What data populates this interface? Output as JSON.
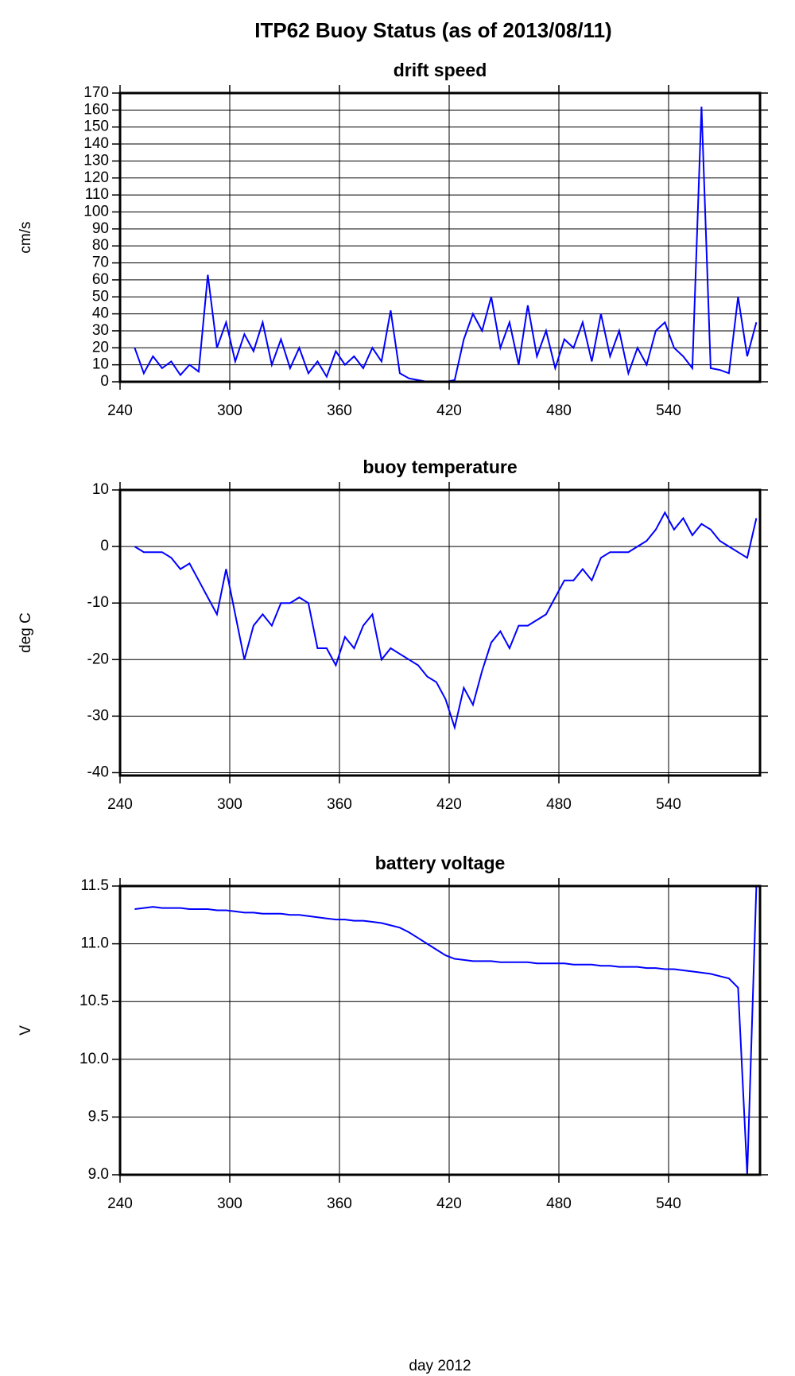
{
  "title": "ITP62 Buoy Status (as of 2013/08/11)",
  "chart_data": [
    {
      "type": "line",
      "title": "drift speed",
      "ylabel": "cm/s",
      "grid": true,
      "xlim": [
        240,
        590
      ],
      "xticks": [
        240,
        300,
        360,
        420,
        480,
        540
      ],
      "ylim": [
        0,
        170
      ],
      "yticks": [
        0,
        10,
        20,
        30,
        40,
        50,
        60,
        70,
        80,
        90,
        100,
        110,
        120,
        130,
        140,
        150,
        160,
        170
      ],
      "x": [
        248,
        253,
        258,
        263,
        268,
        273,
        278,
        283,
        288,
        293,
        298,
        303,
        308,
        313,
        318,
        323,
        328,
        333,
        338,
        343,
        348,
        353,
        358,
        363,
        368,
        373,
        378,
        383,
        388,
        393,
        398,
        403,
        408,
        413,
        418,
        423,
        428,
        433,
        438,
        443,
        448,
        453,
        458,
        463,
        468,
        473,
        478,
        483,
        488,
        493,
        498,
        503,
        508,
        513,
        518,
        523,
        528,
        533,
        538,
        543,
        548,
        553,
        558,
        563,
        568,
        573,
        578,
        583,
        588
      ],
      "series": [
        {
          "color": "#0000ff",
          "values": [
            20,
            5,
            15,
            8,
            12,
            4,
            10,
            6,
            63,
            20,
            35,
            12,
            28,
            18,
            35,
            10,
            25,
            8,
            20,
            5,
            12,
            3,
            18,
            10,
            15,
            8,
            20,
            12,
            42,
            5,
            2,
            1,
            0,
            0,
            0,
            1,
            25,
            40,
            30,
            50,
            20,
            35,
            10,
            45,
            15,
            30,
            8,
            25,
            20,
            35,
            12,
            40,
            15,
            30,
            5,
            20,
            10,
            30,
            35,
            20,
            15,
            8,
            162,
            8,
            7,
            5,
            50,
            15,
            35
          ]
        }
      ]
    },
    {
      "type": "line",
      "title": "buoy temperature",
      "ylabel": "deg C",
      "grid": true,
      "xlim": [
        240,
        590
      ],
      "xticks": [
        240,
        300,
        360,
        420,
        480,
        540
      ],
      "ylim": [
        -40.5,
        10
      ],
      "yticks": [
        -40,
        -30,
        -20,
        -10,
        0,
        10
      ],
      "x": [
        248,
        253,
        258,
        263,
        268,
        273,
        278,
        283,
        288,
        293,
        298,
        303,
        308,
        313,
        318,
        323,
        328,
        333,
        338,
        343,
        348,
        353,
        358,
        363,
        368,
        373,
        378,
        383,
        388,
        393,
        398,
        403,
        408,
        413,
        418,
        423,
        428,
        433,
        438,
        443,
        448,
        453,
        458,
        463,
        468,
        473,
        478,
        483,
        488,
        493,
        498,
        503,
        508,
        513,
        518,
        523,
        528,
        533,
        538,
        543,
        548,
        553,
        558,
        563,
        568,
        573,
        578,
        583,
        588
      ],
      "series": [
        {
          "color": "#0000ff",
          "values": [
            0,
            -1,
            -1,
            -1,
            -2,
            -4,
            -3,
            -6,
            -9,
            -12,
            -4,
            -12,
            -20,
            -14,
            -12,
            -14,
            -10,
            -10,
            -9,
            -10,
            -18,
            -18,
            -21,
            -16,
            -18,
            -14,
            -12,
            -20,
            -18,
            -19,
            -20,
            -21,
            -23,
            -24,
            -27,
            -32,
            -25,
            -28,
            -22,
            -17,
            -15,
            -18,
            -14,
            -14,
            -13,
            -12,
            -9,
            -6,
            -6,
            -4,
            -6,
            -2,
            -1,
            -1,
            -1,
            0,
            1,
            3,
            6,
            3,
            5,
            2,
            4,
            3,
            1,
            0,
            -1,
            -2,
            5
          ]
        }
      ]
    },
    {
      "type": "line",
      "title": "battery voltage",
      "ylabel": "V",
      "xlabel": "day 2012",
      "grid": true,
      "xlim": [
        240,
        590
      ],
      "xticks": [
        240,
        300,
        360,
        420,
        480,
        540
      ],
      "ylim": [
        9,
        11.5
      ],
      "yticks": [
        {
          "value": 9,
          "label": "9.0"
        },
        9.5,
        {
          "value": 10,
          "label": "10.0"
        },
        10.5,
        {
          "value": 11,
          "label": "11.0"
        },
        11.5
      ],
      "x": [
        248,
        253,
        258,
        263,
        268,
        273,
        278,
        283,
        288,
        293,
        298,
        303,
        308,
        313,
        318,
        323,
        328,
        333,
        338,
        343,
        348,
        353,
        358,
        363,
        368,
        373,
        378,
        383,
        388,
        393,
        398,
        403,
        408,
        413,
        418,
        423,
        428,
        433,
        438,
        443,
        448,
        453,
        458,
        463,
        468,
        473,
        478,
        483,
        488,
        493,
        498,
        503,
        508,
        513,
        518,
        523,
        528,
        533,
        538,
        543,
        548,
        553,
        558,
        563,
        568,
        573,
        578,
        583,
        588
      ],
      "series": [
        {
          "color": "#0000ff",
          "values": [
            11.3,
            11.31,
            11.32,
            11.31,
            11.31,
            11.31,
            11.3,
            11.3,
            11.3,
            11.29,
            11.29,
            11.28,
            11.27,
            11.27,
            11.26,
            11.26,
            11.26,
            11.25,
            11.25,
            11.24,
            11.23,
            11.22,
            11.21,
            11.21,
            11.2,
            11.2,
            11.19,
            11.18,
            11.16,
            11.14,
            11.1,
            11.05,
            11.0,
            10.95,
            10.9,
            10.87,
            10.86,
            10.85,
            10.85,
            10.85,
            10.84,
            10.84,
            10.84,
            10.84,
            10.83,
            10.83,
            10.83,
            10.83,
            10.82,
            10.82,
            10.82,
            10.81,
            10.81,
            10.8,
            10.8,
            10.8,
            10.79,
            10.79,
            10.78,
            10.78,
            10.77,
            10.76,
            10.75,
            10.74,
            10.72,
            10.7,
            10.62,
            9.0,
            11.5
          ]
        }
      ]
    }
  ]
}
